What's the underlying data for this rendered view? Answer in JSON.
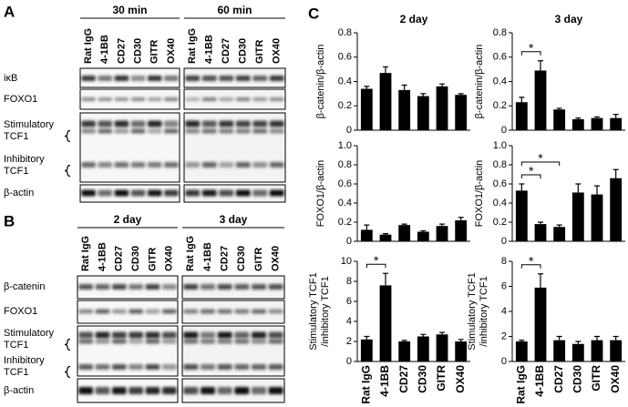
{
  "panel_a": {
    "label": "A",
    "groups": [
      "30 min",
      "60 min"
    ],
    "lanes": [
      "Rat IgG",
      "4-1BB",
      "CD27",
      "CD30",
      "GITR",
      "OX40"
    ],
    "rows": [
      [
        "iκB"
      ],
      [
        "FOXO1"
      ],
      [
        "Stimulatory",
        "TCF1"
      ],
      [
        "Inhibitory",
        "TCF1"
      ],
      [
        "β-actin"
      ]
    ]
  },
  "panel_b": {
    "label": "B",
    "groups": [
      "2 day",
      "3 day"
    ],
    "lanes": [
      "Rat IgG",
      "4-1BB",
      "CD27",
      "CD30",
      "GITR",
      "OX40"
    ],
    "rows": [
      [
        "β-catenin"
      ],
      [
        "FOXO1"
      ],
      [
        "Stimulatory",
        "TCF1"
      ],
      [
        "Inhibitory",
        "TCF1"
      ],
      [
        "β-actin"
      ]
    ]
  },
  "panel_c": {
    "label": "C"
  },
  "chart_data": [
    {
      "type": "bar",
      "title": "2 day",
      "y_label": [
        "β-catenin/β-actin"
      ],
      "categories": [
        null,
        null,
        null,
        null,
        null,
        null
      ],
      "values": [
        0.34,
        0.47,
        0.33,
        0.28,
        0.36,
        0.29
      ],
      "errors": [
        0.02,
        0.05,
        0.04,
        0.02,
        0.02,
        0.01
      ],
      "color": "#000000",
      "ylim": [
        0,
        0.8
      ],
      "yticks": [
        0,
        0.2,
        0.4,
        0.6,
        0.8
      ]
    },
    {
      "type": "bar",
      "title": "3 day",
      "y_label": [
        "β-catenin/β-actin"
      ],
      "categories": [
        null,
        null,
        null,
        null,
        null,
        null
      ],
      "values": [
        0.23,
        0.49,
        0.17,
        0.09,
        0.1,
        0.1
      ],
      "errors": [
        0.04,
        0.08,
        0.01,
        0.01,
        0.01,
        0.03
      ],
      "color": "#000000",
      "ylim": [
        0,
        0.8
      ],
      "yticks": [
        0,
        0.2,
        0.4,
        0.6,
        0.8
      ],
      "significance": [
        {
          "from": 0,
          "to": 1,
          "label": "*"
        }
      ]
    },
    {
      "type": "bar",
      "y_label": [
        "FOXO1/β-actin"
      ],
      "categories": [
        null,
        null,
        null,
        null,
        null,
        null
      ],
      "values": [
        0.12,
        0.07,
        0.17,
        0.1,
        0.16,
        0.22
      ],
      "errors": [
        0.05,
        0.01,
        0.01,
        0.01,
        0.02,
        0.03
      ],
      "color": "#000000",
      "ylim": [
        0,
        1
      ],
      "yticks": [
        0,
        0.2,
        0.4,
        0.6,
        0.8,
        {
          "value": 1,
          "label": "1.0"
        }
      ]
    },
    {
      "type": "bar",
      "y_label": [
        "FOXO1/β-actin"
      ],
      "categories": [
        null,
        null,
        null,
        null,
        null,
        null
      ],
      "values": [
        0.53,
        0.18,
        0.15,
        0.51,
        0.49,
        0.66
      ],
      "errors": [
        0.07,
        0.02,
        0.02,
        0.09,
        0.09,
        0.09
      ],
      "color": "#000000",
      "ylim": [
        0,
        1
      ],
      "yticks": [
        0,
        0.2,
        0.4,
        0.6,
        0.8,
        {
          "value": 1,
          "label": "1.0"
        }
      ],
      "significance": [
        {
          "from": 0,
          "to": 1,
          "label": "*"
        },
        {
          "from": 0,
          "to": 2,
          "label": "*"
        }
      ]
    },
    {
      "type": "bar",
      "y_label": [
        "Stimulatory TCF1",
        "/inhibitory TCF1"
      ],
      "categories": [
        "Rat IgG",
        "4-1BB",
        "CD27",
        "CD30",
        "GITR",
        "OX40"
      ],
      "values": [
        2.2,
        7.6,
        2.0,
        2.5,
        2.7,
        2.0
      ],
      "errors": [
        0.3,
        1.2,
        0.1,
        0.2,
        0.2,
        0.2
      ],
      "color": "#000000",
      "ylim": [
        0,
        10
      ],
      "yticks": [
        0,
        2,
        4,
        6,
        8,
        10
      ],
      "significance": [
        {
          "from": 0,
          "to": 1,
          "label": "*"
        }
      ]
    },
    {
      "type": "bar",
      "y_label": [
        "Stimulatory TCF1",
        "/inhibitory TCF1"
      ],
      "categories": [
        "Rat IgG",
        "4-1BB",
        "CD27",
        "CD30",
        "GITR",
        "OX40"
      ],
      "values": [
        1.6,
        5.9,
        1.7,
        1.4,
        1.7,
        1.7
      ],
      "errors": [
        0.1,
        1.1,
        0.3,
        0.2,
        0.3,
        0.3
      ],
      "color": "#000000",
      "ylim": [
        0,
        8
      ],
      "yticks": [
        0,
        2,
        4,
        6,
        8
      ],
      "significance": [
        {
          "from": 0,
          "to": 1,
          "label": "*"
        }
      ]
    }
  ]
}
